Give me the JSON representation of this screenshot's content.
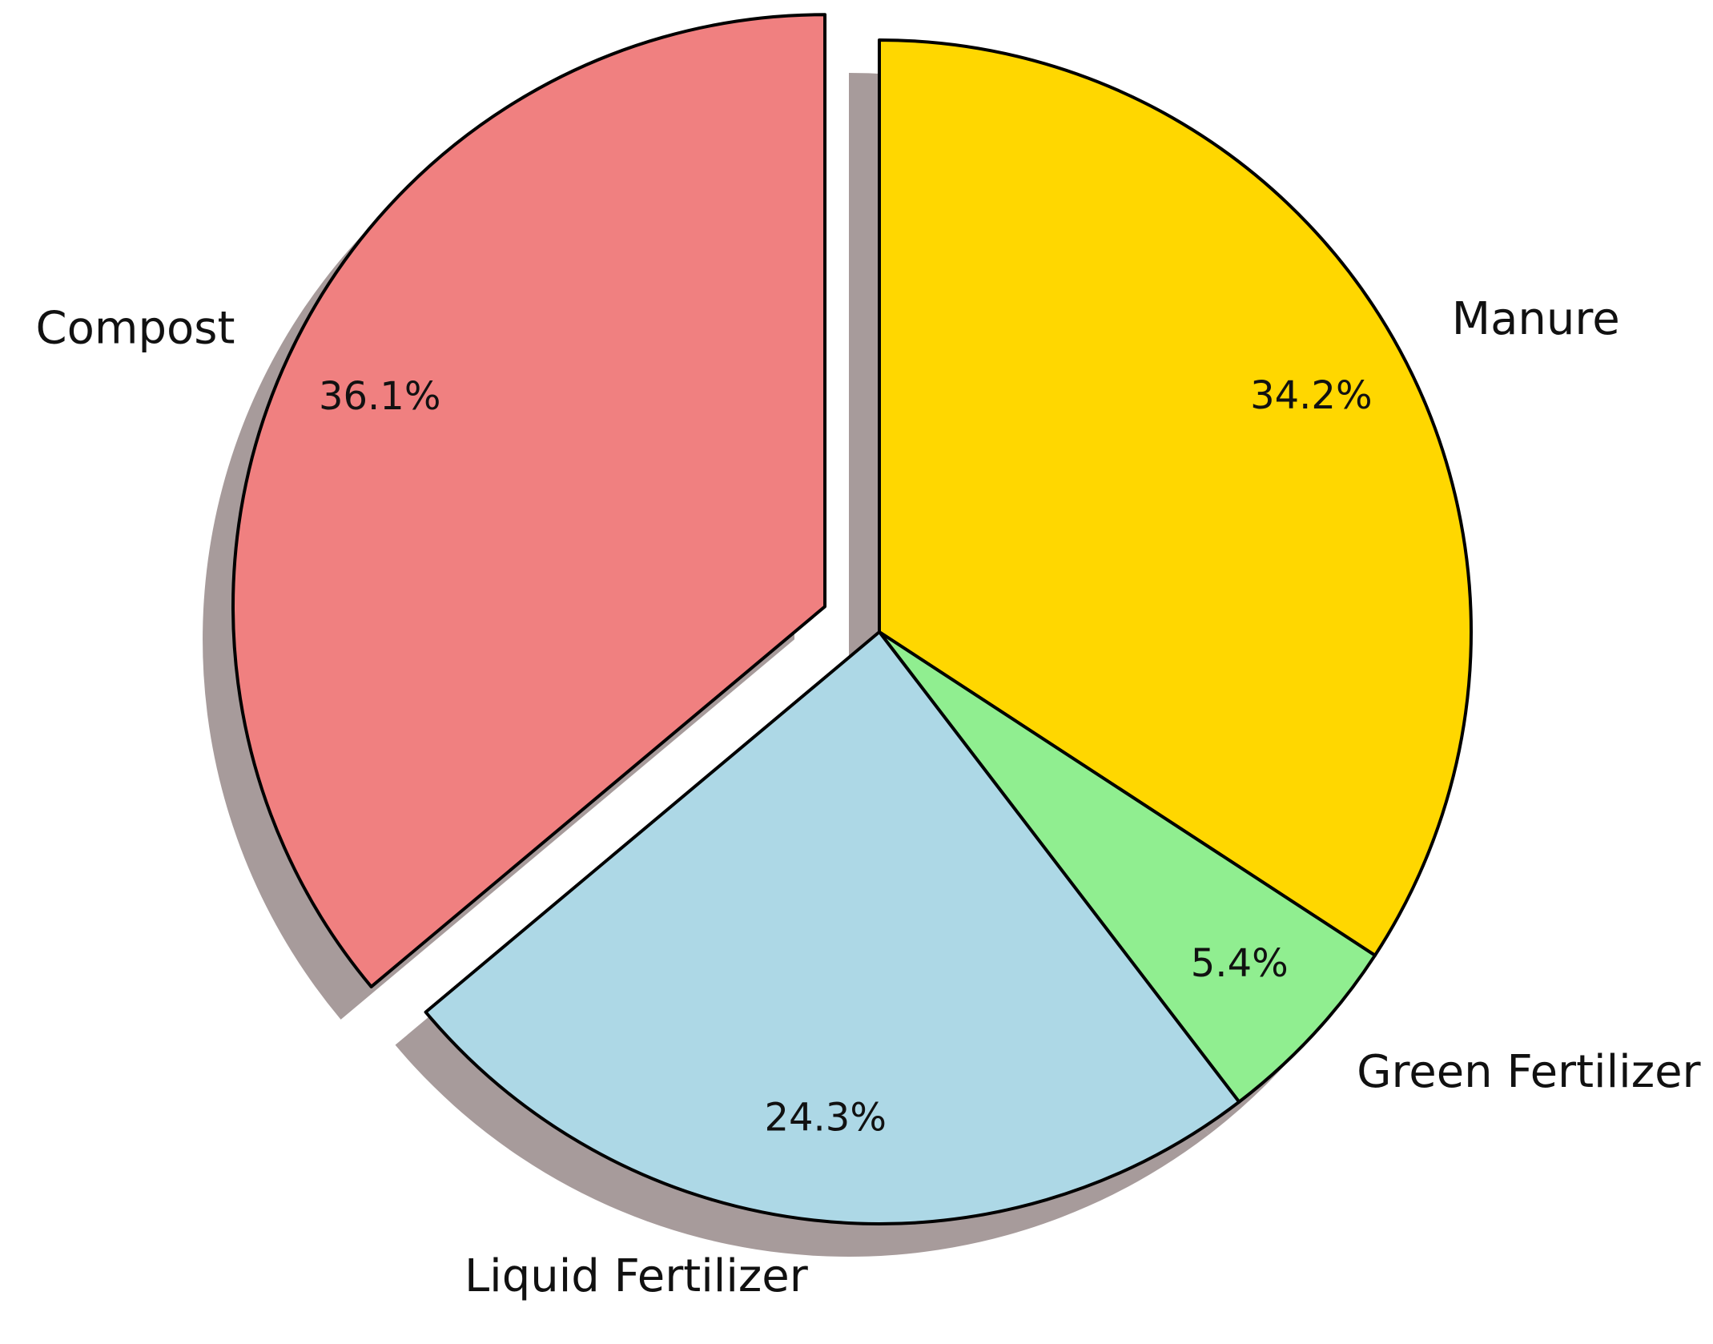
{
  "chart_data": {
    "type": "pie",
    "slices": [
      {
        "label": "Manure",
        "value": 34.2,
        "pct_text": "34.2%",
        "color": "#ffd700",
        "exploded": false
      },
      {
        "label": "Green Fertilizer",
        "value": 5.4,
        "pct_text": "5.4%",
        "color": "#90ee90",
        "exploded": false
      },
      {
        "label": "Liquid Fertilizer",
        "value": 24.3,
        "pct_text": "24.3%",
        "color": "#add8e6",
        "exploded": false
      },
      {
        "label": "Compost",
        "value": 36.1,
        "pct_text": "36.1%",
        "color": "#f08080",
        "exploded": true
      }
    ],
    "start_angle": 90,
    "direction": "clockwise",
    "shadow": true,
    "edge_color": "#000000"
  }
}
